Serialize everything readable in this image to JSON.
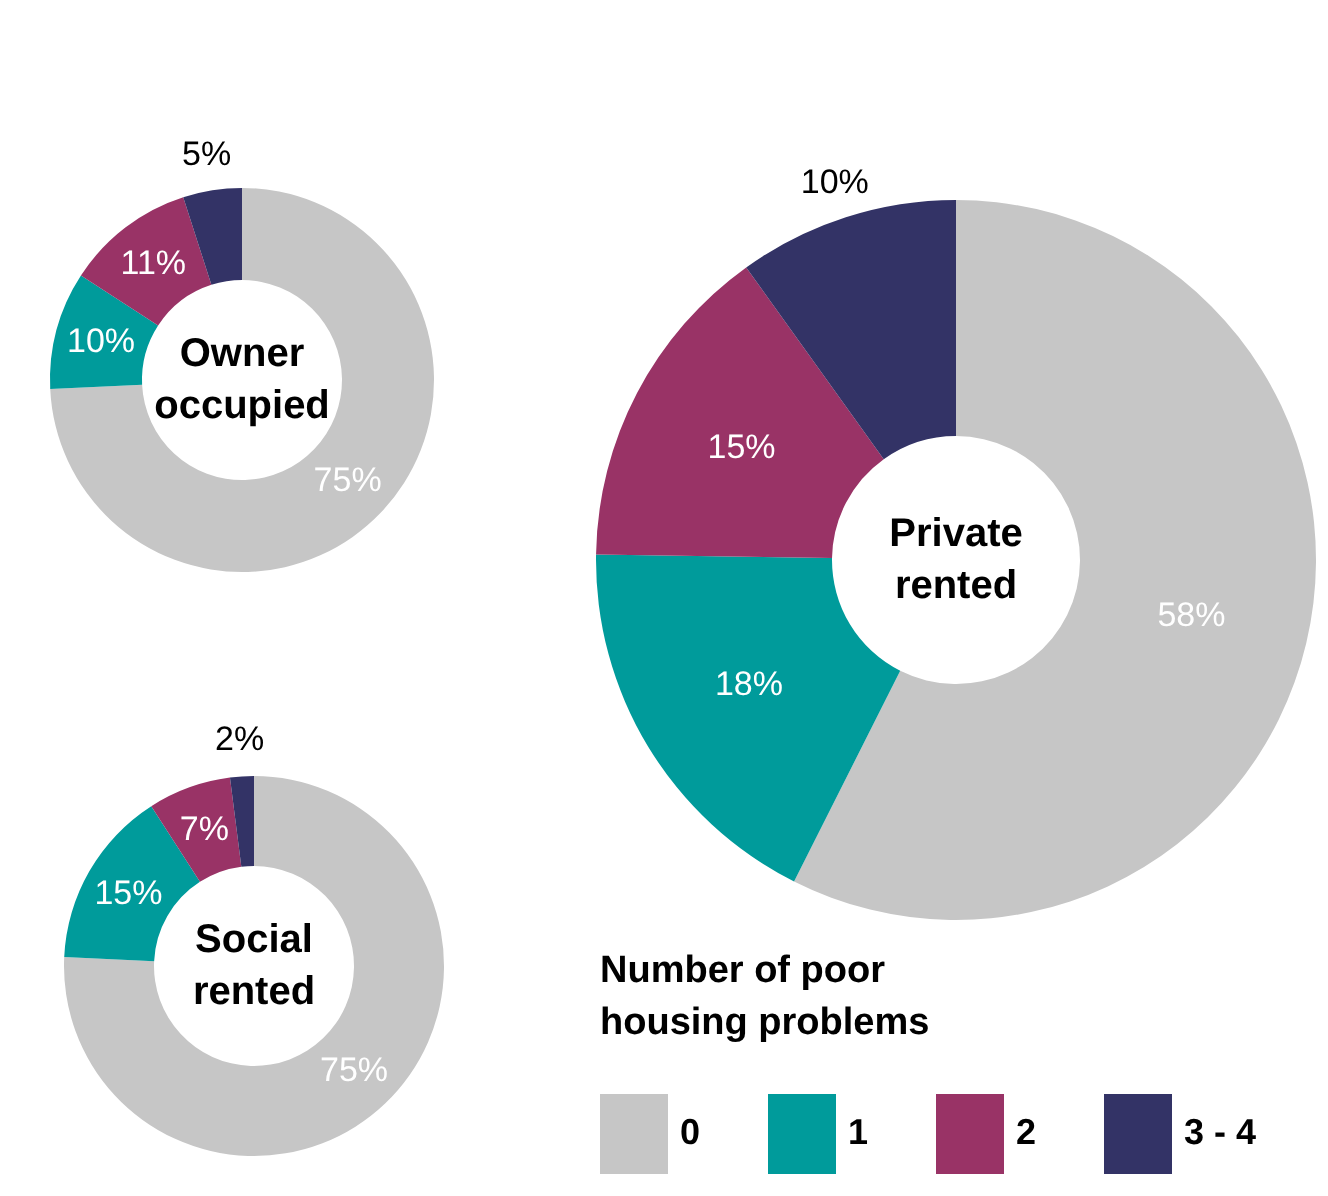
{
  "chart_data": [
    {
      "type": "donut",
      "title": "Owner occupied",
      "categories": [
        "0",
        "1",
        "2",
        "3 - 4"
      ],
      "values": [
        75,
        10,
        11,
        5
      ],
      "value_labels": [
        "75%",
        "10%",
        "11%",
        "5%"
      ],
      "colors": [
        "#c6c6c6",
        "#009b9b",
        "#993366",
        "#333366"
      ],
      "legend_title": "Number of poor housing problems",
      "legend": "bottom right"
    },
    {
      "type": "donut",
      "title": "Private rented",
      "values": [
        58,
        18,
        15,
        10
      ],
      "value_labels": [
        "58%",
        "18%",
        "15%",
        "10%"
      ],
      "colors": [
        "#c6c6c6",
        "#009b9b",
        "#993366",
        "#333366"
      ]
    },
    {
      "type": "donut",
      "title": "Social rented",
      "values": [
        75,
        15,
        7,
        2
      ],
      "value_labels": [
        "75%",
        "15%",
        "7%",
        "2%"
      ],
      "colors": [
        "#c6c6c6",
        "#009b9b",
        "#993366",
        "#333366"
      ]
    }
  ]
}
